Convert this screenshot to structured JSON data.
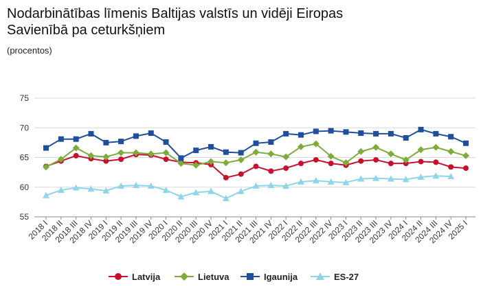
{
  "title": "Nodarbinātības līmenis Baltijas valstīs un vidēji Eiropas Savienībā pa ceturkšņiem",
  "subtitle": "(procentos)",
  "chart_data": {
    "type": "line",
    "categories": [
      "2018 I",
      "2018 II",
      "2018 III",
      "2018 IV",
      "2019 I",
      "2019 II",
      "2019 III",
      "2019 IV",
      "2020 I",
      "2020 II",
      "2020 III",
      "2020 IV",
      "2021 I",
      "2021 II",
      "2021 III",
      "2021 IV",
      "2022 I",
      "2022 II",
      "2022 III",
      "2022 IV",
      "2023 I",
      "2023 II",
      "2023 III",
      "2023 IV",
      "2024 I",
      "2024 II",
      "2024 III",
      "2024 IV",
      "2025 I"
    ],
    "ylim": [
      55,
      75
    ],
    "yticks": [
      55,
      60,
      65,
      70,
      75
    ],
    "grid": true,
    "legend_position": "bottom",
    "series": [
      {
        "name": "Latvija",
        "color": "#c8102e",
        "marker": "circle",
        "values": [
          63.5,
          64.4,
          65.3,
          64.8,
          64.4,
          64.7,
          65.5,
          65.4,
          64.7,
          64.2,
          64.1,
          63.8,
          61.6,
          62.2,
          63.5,
          62.7,
          63.2,
          64.0,
          64.6,
          64.0,
          63.7,
          64.4,
          64.6,
          64.0,
          64.0,
          64.3,
          64.2,
          63.4,
          63.2
        ]
      },
      {
        "name": "Lietuva",
        "color": "#7fab3c",
        "marker": "diamond",
        "values": [
          63.4,
          64.7,
          66.6,
          65.3,
          65.1,
          65.8,
          65.8,
          65.6,
          65.8,
          64.0,
          63.7,
          64.3,
          64.1,
          64.6,
          65.9,
          65.6,
          65.1,
          66.8,
          67.3,
          65.2,
          64.1,
          66.0,
          66.7,
          65.6,
          64.6,
          66.3,
          66.7,
          66.0,
          65.3
        ]
      },
      {
        "name": "Igaunija",
        "color": "#1f4e9c",
        "marker": "square",
        "values": [
          66.6,
          68.1,
          68.1,
          69.0,
          67.5,
          67.7,
          68.6,
          69.1,
          67.6,
          64.9,
          66.2,
          66.8,
          65.9,
          65.8,
          67.4,
          67.6,
          69.0,
          68.8,
          69.4,
          69.5,
          69.3,
          69.1,
          69.0,
          69.0,
          68.3,
          69.7,
          69.0,
          68.5,
          67.4
        ]
      },
      {
        "name": "ES-27",
        "color": "#8fd4ea",
        "marker": "triangle",
        "values": [
          58.6,
          59.5,
          59.9,
          59.7,
          59.4,
          60.2,
          60.3,
          60.2,
          59.5,
          58.4,
          59.1,
          59.3,
          58.1,
          59.3,
          60.2,
          60.3,
          60.2,
          60.9,
          61.1,
          60.9,
          60.8,
          61.4,
          61.5,
          61.4,
          61.3,
          61.7,
          61.9,
          61.8,
          null
        ]
      }
    ]
  }
}
